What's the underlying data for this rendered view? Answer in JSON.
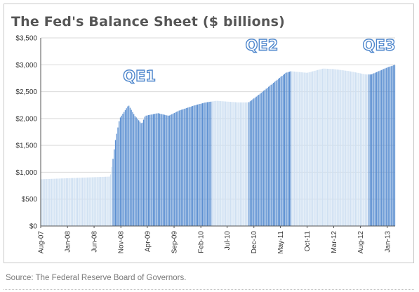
{
  "chart_data": {
    "type": "bar",
    "title": "The Fed's Balance Sheet ($ billions)",
    "xlabel": "",
    "ylabel": "",
    "ylim": [
      0,
      3500
    ],
    "y_ticks": [
      "$0",
      "$500",
      "$1,000",
      "$1,500",
      "$2,000",
      "$2,500",
      "$3,000",
      "$3,500"
    ],
    "y_tick_values": [
      0,
      500,
      1000,
      1500,
      2000,
      2500,
      3000,
      3500
    ],
    "x_tick_labels": [
      "Aug-07",
      "Jan-08",
      "Jun-08",
      "Nov-08",
      "Apr-09",
      "Sep-09",
      "Feb-10",
      "Jul-10",
      "Dec-10",
      "May-11",
      "Oct-11",
      "Mar-12",
      "Aug-12",
      "Jan-13"
    ],
    "x_range": [
      "2007-08-01",
      "2013-02-15"
    ],
    "grid": true,
    "frequency": "weekly",
    "colors": {
      "qe": "#5b8fd1",
      "baseline": "#cfe0f2",
      "annotation": "#4d86cc",
      "grid": "#d9d9d9"
    },
    "anchors": [
      [
        "2007-08-01",
        870
      ],
      [
        "2008-09-01",
        920
      ],
      [
        "2008-09-15",
        1200
      ],
      [
        "2008-10-01",
        1600
      ],
      [
        "2008-10-25",
        2000
      ],
      [
        "2008-12-15",
        2250
      ],
      [
        "2009-01-20",
        2050
      ],
      [
        "2009-03-01",
        1900
      ],
      [
        "2009-03-20",
        2050
      ],
      [
        "2009-06-01",
        2100
      ],
      [
        "2009-08-01",
        2050
      ],
      [
        "2009-10-01",
        2150
      ],
      [
        "2010-01-01",
        2250
      ],
      [
        "2010-03-01",
        2300
      ],
      [
        "2010-05-01",
        2330
      ],
      [
        "2010-09-01",
        2300
      ],
      [
        "2010-11-01",
        2300
      ],
      [
        "2011-01-01",
        2450
      ],
      [
        "2011-06-01",
        2850
      ],
      [
        "2011-07-01",
        2880
      ],
      [
        "2011-10-01",
        2850
      ],
      [
        "2012-01-01",
        2930
      ],
      [
        "2012-03-01",
        2920
      ],
      [
        "2012-06-01",
        2880
      ],
      [
        "2012-09-01",
        2820
      ],
      [
        "2012-10-01",
        2820
      ],
      [
        "2013-01-01",
        2950
      ],
      [
        "2013-02-15",
        3000
      ]
    ],
    "series": [
      {
        "name": "QE1",
        "start": "2008-09-15",
        "end": "2010-03-31"
      },
      {
        "name": "QE2",
        "start": "2010-11-01",
        "end": "2011-06-30"
      },
      {
        "name": "QE3",
        "start": "2012-09-15",
        "end": "2013-02-15"
      }
    ],
    "annotations": [
      {
        "text": "QE1",
        "x": "2009-02-15",
        "y": 2700
      },
      {
        "text": "QE2",
        "x": "2011-01-15",
        "y": 3270
      },
      {
        "text": "QE3",
        "x": "2012-11-15",
        "y": 3270
      }
    ]
  },
  "footer": {
    "source": "Source: The Federal Reserve Board of Governors."
  }
}
